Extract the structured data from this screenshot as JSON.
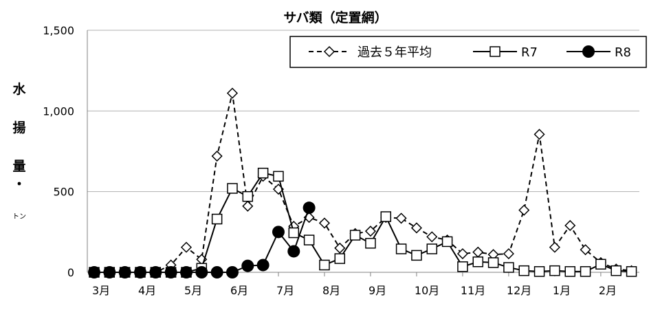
{
  "chart_data": {
    "type": "line",
    "title": "サバ類（定置網）",
    "ylabel_chars": [
      "水",
      "揚",
      "量",
      "・",
      "トン"
    ],
    "ylim": [
      0,
      1500
    ],
    "yticks": [
      0,
      500,
      1000,
      1500
    ],
    "ytick_labels": [
      "0",
      "500",
      "1,000",
      "1,500"
    ],
    "grid": true,
    "legend_position": "top-right",
    "x_month_labels": [
      "3月",
      "4月",
      "5月",
      "6月",
      "7月",
      "8月",
      "9月",
      "10月",
      "11月",
      "12月",
      "1月",
      "2月"
    ],
    "x": [
      1,
      2,
      3,
      4,
      5,
      6,
      7,
      8,
      9,
      10,
      11,
      12,
      13,
      14,
      15,
      16,
      17,
      18,
      19,
      20,
      21,
      22,
      23,
      24,
      25,
      26,
      27,
      28,
      29,
      30,
      31,
      32,
      33,
      34,
      35,
      36
    ],
    "series": [
      {
        "name": "過去５年平均",
        "style": "dashed-diamond",
        "color": "#000000",
        "values": [
          0,
          0,
          0,
          0,
          0,
          45,
          155,
          80,
          720,
          1110,
          410,
          595,
          515,
          285,
          340,
          305,
          150,
          240,
          255,
          340,
          335,
          275,
          220,
          200,
          115,
          125,
          110,
          115,
          385,
          855,
          155,
          290,
          140,
          60,
          20,
          10
        ]
      },
      {
        "name": "R7",
        "style": "solid-square",
        "color": "#000000",
        "values": [
          0,
          0,
          0,
          0,
          0,
          0,
          0,
          25,
          330,
          520,
          470,
          615,
          595,
          245,
          200,
          45,
          85,
          230,
          180,
          345,
          145,
          105,
          145,
          190,
          35,
          65,
          60,
          30,
          10,
          5,
          10,
          5,
          5,
          50,
          10,
          5
        ]
      },
      {
        "name": "R8",
        "style": "solid-filled-circle",
        "color": "#000000",
        "values": [
          0,
          0,
          0,
          0,
          0,
          0,
          0,
          0,
          0,
          0,
          40,
          45,
          250,
          130,
          400,
          null,
          null,
          null,
          null,
          null,
          null,
          null,
          null,
          null,
          null,
          null,
          null,
          null,
          null,
          null,
          null,
          null,
          null,
          null,
          null,
          null
        ]
      }
    ]
  }
}
